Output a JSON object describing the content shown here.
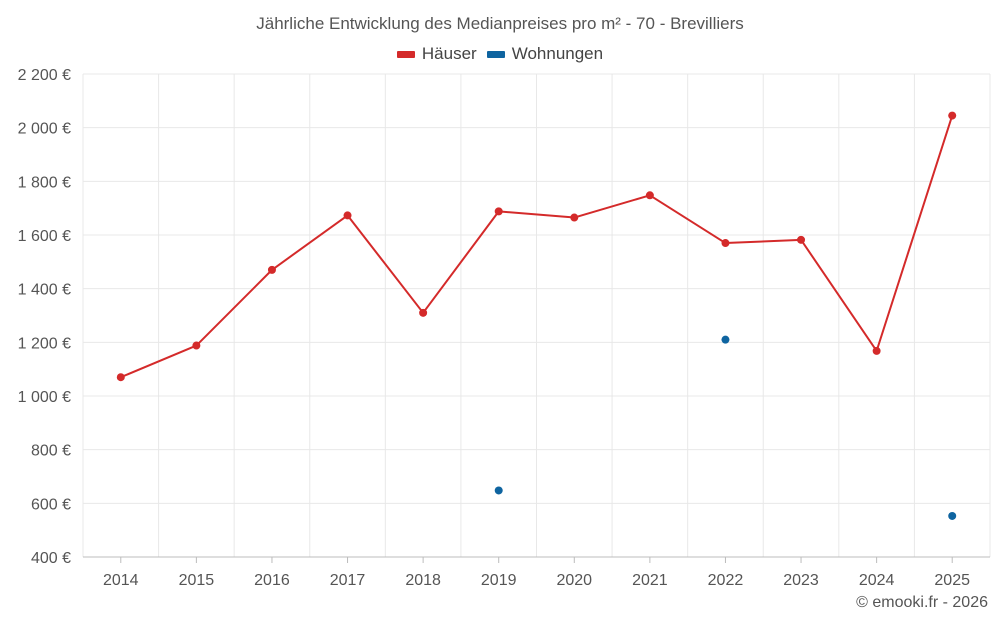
{
  "chart_data": {
    "type": "line",
    "title": "Jährliche Entwicklung des Medianpreises pro m² - 70 - Brevilliers",
    "xlabel": "",
    "ylabel": "",
    "categories": [
      "2014",
      "2015",
      "2016",
      "2017",
      "2018",
      "2019",
      "2020",
      "2021",
      "2022",
      "2023",
      "2024",
      "2025"
    ],
    "ylim": [
      400,
      2200
    ],
    "yticks": [
      400,
      600,
      800,
      1000,
      1200,
      1400,
      1600,
      1800,
      2000,
      2200
    ],
    "ytick_labels": [
      "400 €",
      "600 €",
      "800 €",
      "1 000 €",
      "1 200 €",
      "1 400 €",
      "1 600 €",
      "1 800 €",
      "2 000 €",
      "2 200 €"
    ],
    "grid": true,
    "legend_position": "top-center",
    "series": [
      {
        "name": "Häuser",
        "color": "#d42a2a",
        "style": "line-markers",
        "values": [
          1070,
          1188,
          1470,
          1673,
          1310,
          1688,
          1665,
          1748,
          1570,
          1582,
          1168,
          2045
        ]
      },
      {
        "name": "Wohnungen",
        "color": "#0e64a0",
        "style": "markers",
        "values": [
          null,
          null,
          null,
          null,
          null,
          648,
          null,
          null,
          1210,
          null,
          null,
          553
        ]
      }
    ]
  },
  "credit": "© emooki.fr - 2026"
}
